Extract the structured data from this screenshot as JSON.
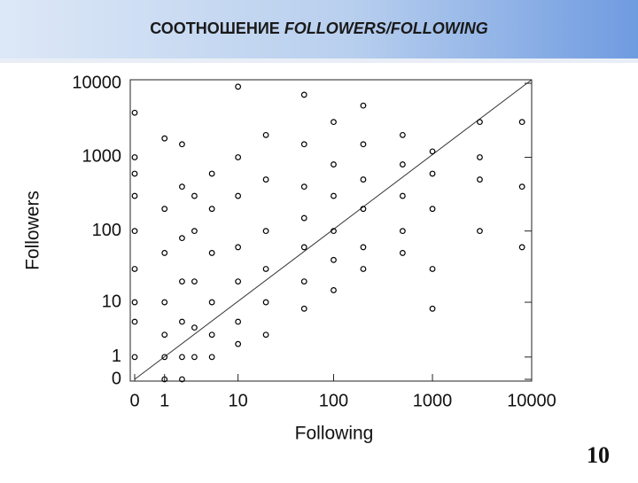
{
  "slide": {
    "title": "СООТНОШЕНИЕ",
    "title_emphasis": "FOLLOWERS/FOLLOWING",
    "page_number": "10"
  },
  "chart_data": {
    "type": "scatter",
    "xlabel": "Following",
    "ylabel": "Followers",
    "xscale": "log",
    "yscale": "log",
    "color": "#000000",
    "xlim": [
      0,
      10000
    ],
    "ylim": [
      0,
      10000
    ],
    "xticks": [
      0,
      1,
      10,
      100,
      1000,
      10000
    ],
    "yticks": [
      0,
      1,
      10,
      100,
      1000,
      10000
    ],
    "x": [
      0,
      0,
      0,
      0,
      0,
      0,
      0,
      0,
      0,
      1,
      1,
      1,
      1,
      1,
      1,
      1,
      2,
      2,
      2,
      2,
      2,
      2,
      2,
      3,
      3,
      3,
      3,
      3,
      5,
      5,
      5,
      5,
      5,
      5,
      10,
      10,
      10,
      10,
      10,
      10,
      10,
      20,
      20,
      20,
      20,
      20,
      20,
      50,
      50,
      50,
      50,
      50,
      50,
      50,
      100,
      100,
      100,
      100,
      100,
      100,
      200,
      200,
      200,
      200,
      200,
      200,
      500,
      500,
      500,
      500,
      500,
      1000,
      1000,
      1000,
      1000,
      1000,
      3000,
      3000,
      3000,
      3000,
      8000,
      8000,
      8000
    ],
    "values": [
      1,
      5,
      10,
      30,
      100,
      300,
      600,
      1000,
      4000,
      0,
      1,
      3,
      10,
      50,
      200,
      1800,
      0,
      1,
      5,
      20,
      80,
      400,
      1500,
      1,
      4,
      20,
      100,
      300,
      1,
      3,
      10,
      50,
      200,
      600,
      2,
      5,
      20,
      60,
      300,
      1000,
      9000,
      3,
      10,
      30,
      100,
      500,
      2000,
      8,
      20,
      60,
      150,
      400,
      1500,
      7000,
      15,
      40,
      100,
      300,
      800,
      3000,
      30,
      60,
      200,
      500,
      1500,
      5000,
      50,
      100,
      300,
      800,
      2000,
      8,
      30,
      200,
      600,
      1200,
      100,
      500,
      1000,
      3000,
      60,
      400,
      3000
    ]
  }
}
